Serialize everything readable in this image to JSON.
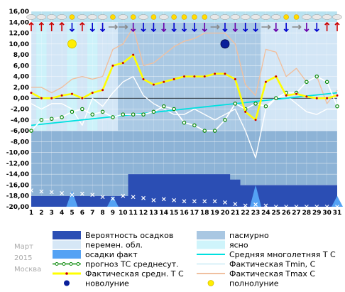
{
  "meta": {
    "month": "Март",
    "year": "2015",
    "city": "Москва"
  },
  "legend": {
    "left": [
      {
        "label": "Вероятность осадков",
        "swatch": "precip-prob"
      },
      {
        "label": "перемен. обл.",
        "swatch": "variable"
      },
      {
        "label": "осадки факт",
        "swatch": "precip-fact"
      },
      {
        "label": "прогноз ТС среднесут.",
        "swatch": "forecast"
      },
      {
        "label": "Фактическая средн. Т С",
        "swatch": "fact-mean"
      },
      {
        "label": "новолуние",
        "swatch": "new-moon"
      }
    ],
    "right": [
      {
        "label": "пасмурно",
        "swatch": "overcast"
      },
      {
        "label": "ясно",
        "swatch": "clear"
      },
      {
        "label": "Средняя многолетняя Т С",
        "swatch": "climate"
      },
      {
        "label": "Фактическая Tmin, С",
        "swatch": "tmin"
      },
      {
        "label": "Фактическая Tmax С",
        "swatch": "tmax"
      },
      {
        "label": "полнолуние",
        "swatch": "full-moon"
      }
    ]
  },
  "colors": {
    "sky_clear": "#cff4fb",
    "sky_variable": "#d6e7f6",
    "sky_overcast": "#a9c7e2",
    "precip_prob": "#2b4eb4",
    "precip_fact": "#54a2f4",
    "fact_mean": "#ffff00",
    "forecast": "#0a8a0a",
    "climate": "#00e0e0",
    "tmin": "#ffffff",
    "tmax": "#f0c0a0",
    "new_moon": "#0a1f9a",
    "full_moon": "#ffee00",
    "probability_markers": "#ffffff"
  },
  "chart_data": {
    "type": "line",
    "x": [
      1,
      2,
      3,
      4,
      5,
      6,
      7,
      8,
      9,
      10,
      11,
      12,
      13,
      14,
      15,
      16,
      17,
      18,
      19,
      20,
      21,
      22,
      23,
      24,
      25,
      26,
      27,
      28,
      29,
      30,
      31
    ],
    "ylim": [
      -20,
      16
    ],
    "yticks": [
      "16,00",
      "14,00",
      "12,00",
      "10,00",
      "8,00",
      "6,00",
      "4,00",
      "2,00",
      "0,00",
      "-2,00",
      "-4,00",
      "-6,00",
      "-8,00",
      "-10,00",
      "-12,00",
      "-14,00",
      "-16,00",
      "-18,00",
      "-20,00"
    ],
    "xticks": [
      "1",
      "2",
      "3",
      "4",
      "5",
      "6",
      "7",
      "8",
      "9",
      "10",
      "11",
      "12",
      "13",
      "14",
      "15",
      "16",
      "17",
      "18",
      "19",
      "20",
      "21",
      "22",
      "23",
      "24",
      "25",
      "26",
      "27",
      "28",
      "29",
      "30",
      "31"
    ],
    "grid": true,
    "sky": [
      "variable",
      "clear",
      "variable",
      "variable",
      "clear",
      "variable",
      "clear",
      "variable",
      "variable",
      "overcast",
      "overcast",
      "overcast",
      "overcast",
      "overcast",
      "overcast",
      "overcast",
      "overcast",
      "overcast",
      "overcast",
      "overcast",
      "overcast",
      "overcast",
      "overcast",
      "variable",
      "variable",
      "variable",
      "variable",
      "variable",
      "variable",
      "variable",
      "variable"
    ],
    "series": [
      {
        "name": "Фактическая Tmax С",
        "key": "tmax",
        "values": [
          2.0,
          2.0,
          1.0,
          2.0,
          3.5,
          4.0,
          3.5,
          4.0,
          9.0,
          10.0,
          13.0,
          6.0,
          6.5,
          8.0,
          9.5,
          10.5,
          11.0,
          12.0,
          12.0,
          12.0,
          10.0,
          2.5,
          0.5,
          9.0,
          8.5,
          4.0,
          5.5,
          3.0,
          4.0,
          -1.0,
          1.5
        ]
      },
      {
        "name": "Фактическая Tmin, С",
        "key": "tmin",
        "values": [
          -1.0,
          -2.0,
          -1.0,
          -1.0,
          -2.0,
          -5.0,
          0.0,
          -1.5,
          1.0,
          3.0,
          4.0,
          0.5,
          -1.0,
          -2.0,
          -3.0,
          -3.0,
          -2.0,
          -3.0,
          -4.0,
          -3.0,
          -2.0,
          -6.0,
          -11.0,
          -2.0,
          0.0,
          0.5,
          -1.0,
          -2.5,
          -3.0,
          -2.0,
          -2.0
        ]
      },
      {
        "name": "Фактическая средн. Т С",
        "key": "fact_mean",
        "values": [
          1.0,
          0.0,
          0.0,
          0.5,
          0.8,
          0.0,
          1.0,
          1.5,
          6.0,
          6.5,
          8.0,
          3.5,
          2.5,
          3.0,
          3.5,
          4.0,
          4.0,
          4.0,
          4.5,
          4.5,
          3.5,
          -2.5,
          -4.0,
          3.0,
          4.0,
          0.5,
          0.8,
          0.3,
          0.0,
          0.0,
          0.5
        ]
      },
      {
        "name": "прогноз ТС среднесут.",
        "key": "forecast",
        "values": [
          -6.0,
          -4.0,
          -3.8,
          -3.5,
          -2.5,
          -2.0,
          -3.0,
          -2.5,
          -3.5,
          -3.0,
          -3.0,
          -3.0,
          -2.5,
          -1.5,
          -2.0,
          -4.5,
          -5.0,
          -6.0,
          -6.0,
          -4.0,
          -1.0,
          -2.0,
          -1.0,
          -1.5,
          0.0,
          1.0,
          1.0,
          3.0,
          4.0,
          3.0,
          -1.5
        ]
      },
      {
        "name": "Средняя многолетняя Т С",
        "key": "climate",
        "values": [
          -5.0,
          -4.8,
          -4.6,
          -4.4,
          -4.2,
          -4.0,
          -3.8,
          -3.6,
          -3.4,
          -3.2,
          -3.0,
          -2.8,
          -2.6,
          -2.4,
          -2.2,
          -2.0,
          -1.8,
          -1.6,
          -1.4,
          -1.2,
          -1.0,
          -0.8,
          -0.6,
          -0.4,
          -0.2,
          0.0,
          0.2,
          0.4,
          0.6,
          0.8,
          1.0
        ]
      }
    ],
    "precip_probability": [
      -18,
      -18,
      -18,
      -18,
      -18,
      -18,
      -18,
      -18,
      -18,
      -18,
      -14,
      -14,
      -14,
      -14,
      -14,
      -14,
      -14,
      -14,
      -14,
      -14,
      -15,
      -16,
      -16,
      -16,
      -16,
      -16,
      -16,
      -16,
      -16,
      -16,
      -16
    ],
    "probability_markers": [
      -17,
      -17.2,
      -17.3,
      -17.5,
      -17.8,
      -17.6,
      -17.8,
      -18.2,
      -18.5,
      -18,
      -18.2,
      -18.4,
      -18.8,
      -18.6,
      -18.8,
      -19,
      -19,
      -19,
      -19,
      -19.2,
      -19.5,
      -19.8,
      -19.6,
      -19.8,
      -20,
      -20,
      -20,
      -20,
      -20,
      -20,
      -20
    ],
    "precip_fact": [
      0,
      0,
      0,
      0,
      3,
      0,
      0,
      0,
      2,
      0,
      0,
      0,
      0,
      0,
      0,
      0,
      0,
      0,
      0,
      0,
      0,
      0,
      4,
      0,
      0,
      0,
      0,
      0,
      0,
      0,
      2
    ],
    "moons": [
      {
        "type": "full",
        "day": 5,
        "value": 10
      },
      {
        "type": "new",
        "day": 20,
        "value": 10
      }
    ],
    "weather_icons": [
      "cloud",
      "cloud",
      "cloud",
      "cloud",
      "sun",
      "cloud",
      "cloud",
      "cloud",
      "sun",
      "cloud",
      "sun",
      "cloud",
      "sun",
      "cloud",
      "sun",
      "sun",
      "sun",
      "sun",
      "cloud",
      "cloud",
      "cloud",
      "cloud",
      "cloud",
      "cloud",
      "cloud",
      "sun",
      "sun",
      "cloud",
      "cloud",
      "cloud",
      "cloud"
    ],
    "wind_arrows": [
      {
        "dir": "up",
        "color": "#cc0000"
      },
      {
        "dir": "up",
        "color": "#cc0000"
      },
      {
        "dir": "up",
        "color": "#cc0000"
      },
      {
        "dir": "up",
        "color": "#cc0000"
      },
      {
        "dir": "down",
        "color": "#0000cc"
      },
      {
        "dir": "up",
        "color": "#cc0000"
      },
      {
        "dir": "down",
        "color": "#0000cc"
      },
      {
        "dir": "down",
        "color": "#0000cc"
      },
      {
        "dir": "right",
        "color": "#888888"
      },
      {
        "dir": "right",
        "color": "#888888"
      },
      {
        "dir": "down",
        "color": "#6600aa"
      },
      {
        "dir": "down",
        "color": "#0000cc"
      },
      {
        "dir": "down",
        "color": "#0000cc"
      },
      {
        "dir": "down",
        "color": "#6600aa"
      },
      {
        "dir": "down",
        "color": "#0000cc"
      },
      {
        "dir": "down",
        "color": "#0000cc"
      },
      {
        "dir": "down",
        "color": "#0000cc"
      },
      {
        "dir": "down",
        "color": "#6600aa"
      },
      {
        "dir": "right",
        "color": "#888888"
      },
      {
        "dir": "down",
        "color": "#0000cc"
      },
      {
        "dir": "down",
        "color": "#6600aa"
      },
      {
        "dir": "down",
        "color": "#0000cc"
      },
      {
        "dir": "down",
        "color": "#0000cc"
      },
      {
        "dir": "right",
        "color": "#888888"
      },
      {
        "dir": "down",
        "color": "#6600aa"
      },
      {
        "dir": "down",
        "color": "#0000cc"
      },
      {
        "dir": "right",
        "color": "#888888"
      },
      {
        "dir": "down",
        "color": "#6600aa"
      },
      {
        "dir": "down",
        "color": "#0000cc"
      },
      {
        "dir": "up",
        "color": "#cc0000"
      },
      {
        "dir": "up",
        "color": "#cc0000"
      }
    ]
  }
}
